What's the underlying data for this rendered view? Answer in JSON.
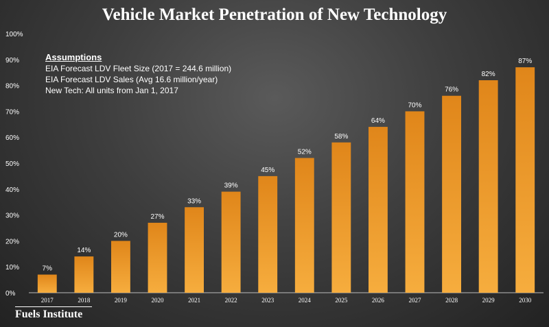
{
  "title": "Vehicle Market Penetration of New Technology",
  "assumptions": {
    "heading": "Assumptions",
    "lines": [
      "EIA Forecast LDV Fleet Size (2017 = 244.6 million)",
      "EIA Forecast LDV Sales (Avg 16.6 million/year)",
      "New Tech: All units from Jan 1, 2017"
    ]
  },
  "brand": "Fuels Institute",
  "colors": {
    "bar_top": "#e0861a",
    "bar_bottom": "#f6ad3e",
    "text": "#ffffff",
    "axis": "#bdbdbd"
  },
  "chart_data": {
    "type": "bar",
    "categories": [
      "2017",
      "2018",
      "2019",
      "2020",
      "2021",
      "2022",
      "2023",
      "2024",
      "2025",
      "2026",
      "2027",
      "2028",
      "2029",
      "2030"
    ],
    "values": [
      7,
      14,
      20,
      27,
      33,
      39,
      45,
      52,
      58,
      64,
      70,
      76,
      82,
      87
    ],
    "data_labels": [
      "7%",
      "14%",
      "20%",
      "27%",
      "33%",
      "39%",
      "45%",
      "52%",
      "58%",
      "64%",
      "70%",
      "76%",
      "82%",
      "87%"
    ],
    "yticks": [
      "0%",
      "10%",
      "20%",
      "30%",
      "40%",
      "50%",
      "60%",
      "70%",
      "80%",
      "90%",
      "100%"
    ],
    "ylim": [
      0,
      100
    ],
    "grid": false,
    "legend": "none"
  }
}
